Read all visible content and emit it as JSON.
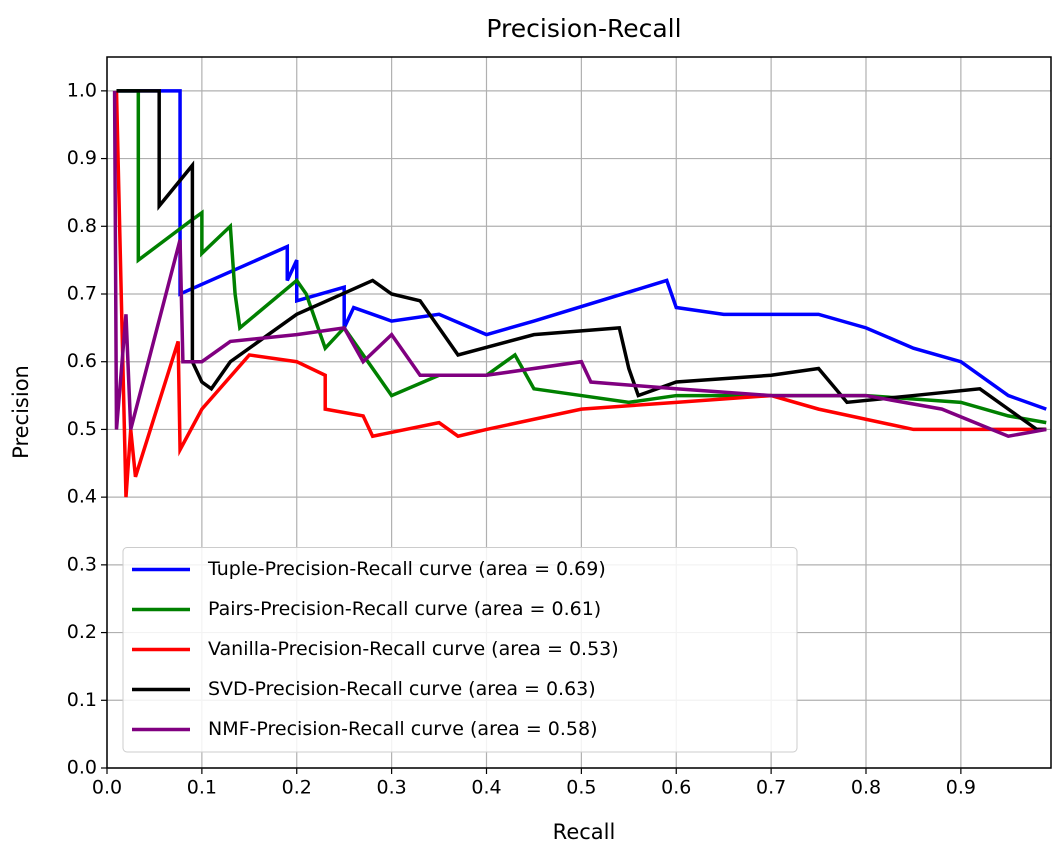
{
  "chart_data": {
    "type": "line",
    "title": "Precision-Recall",
    "x_label": "Recall",
    "y_label": "Precision",
    "xlim": [
      0,
      0.995
    ],
    "ylim": [
      0,
      1.05
    ],
    "xticks": [
      {
        "value": 0,
        "label": "0.0"
      },
      0.1,
      0.2,
      0.3,
      0.4,
      0.5,
      0.6,
      0.7,
      0.8,
      0.9
    ],
    "yticks": [
      {
        "value": 0,
        "label": "0.0"
      },
      0.1,
      0.2,
      0.3,
      0.4,
      0.5,
      0.6,
      0.7,
      0.8,
      0.9,
      {
        "value": 1,
        "label": "1.0"
      }
    ],
    "grid": true,
    "legend": "lower left",
    "series": [
      {
        "name": "Tuple-Precision-Recall curve (area = 0.69)",
        "color": "#0000ff",
        "x": [
          0.01,
          0.077,
          0.077,
          0.19,
          0.19,
          0.2,
          0.2,
          0.25,
          0.25,
          0.26,
          0.3,
          0.35,
          0.4,
          0.45,
          0.59,
          0.6,
          0.65,
          0.7,
          0.75,
          0.8,
          0.85,
          0.9,
          0.95,
          0.99
        ],
        "values": [
          1.0,
          1.0,
          0.7,
          0.77,
          0.72,
          0.75,
          0.69,
          0.71,
          0.65,
          0.68,
          0.66,
          0.67,
          0.64,
          0.66,
          0.72,
          0.68,
          0.67,
          0.67,
          0.67,
          0.65,
          0.62,
          0.6,
          0.55,
          0.53
        ]
      },
      {
        "name": "Pairs-Precision-Recall curve (area = 0.61)",
        "color": "#008000",
        "x": [
          0.01,
          0.033,
          0.033,
          0.09,
          0.1,
          0.1,
          0.13,
          0.135,
          0.14,
          0.2,
          0.21,
          0.23,
          0.25,
          0.3,
          0.35,
          0.4,
          0.43,
          0.45,
          0.5,
          0.55,
          0.6,
          0.7,
          0.8,
          0.9,
          0.95,
          0.99
        ],
        "values": [
          1.0,
          1.0,
          0.75,
          0.81,
          0.82,
          0.76,
          0.8,
          0.7,
          0.65,
          0.72,
          0.7,
          0.62,
          0.65,
          0.55,
          0.58,
          0.58,
          0.61,
          0.56,
          0.55,
          0.54,
          0.55,
          0.55,
          0.55,
          0.54,
          0.52,
          0.51
        ]
      },
      {
        "name": "Vanilla-Precision-Recall curve (area = 0.53)",
        "color": "#ff0000",
        "x": [
          0.01,
          0.02,
          0.025,
          0.03,
          0.075,
          0.077,
          0.1,
          0.15,
          0.2,
          0.23,
          0.23,
          0.27,
          0.28,
          0.35,
          0.37,
          0.4,
          0.5,
          0.6,
          0.7,
          0.75,
          0.85,
          0.9,
          0.99
        ],
        "values": [
          1.0,
          0.4,
          0.5,
          0.43,
          0.63,
          0.47,
          0.53,
          0.61,
          0.6,
          0.58,
          0.53,
          0.52,
          0.49,
          0.51,
          0.49,
          0.5,
          0.53,
          0.54,
          0.55,
          0.53,
          0.5,
          0.5,
          0.5
        ]
      },
      {
        "name": "SVD-Precision-Recall curve (area = 0.63)",
        "color": "#000000",
        "x": [
          0.01,
          0.055,
          0.055,
          0.09,
          0.09,
          0.1,
          0.11,
          0.13,
          0.2,
          0.28,
          0.3,
          0.33,
          0.37,
          0.45,
          0.54,
          0.55,
          0.56,
          0.6,
          0.7,
          0.75,
          0.78,
          0.85,
          0.92,
          0.95,
          0.98,
          0.99
        ],
        "values": [
          1.0,
          1.0,
          0.83,
          0.89,
          0.6,
          0.57,
          0.56,
          0.6,
          0.67,
          0.72,
          0.7,
          0.69,
          0.61,
          0.64,
          0.65,
          0.59,
          0.55,
          0.57,
          0.58,
          0.59,
          0.54,
          0.55,
          0.56,
          0.53,
          0.5,
          0.5
        ]
      },
      {
        "name": "NMF-Precision-Recall curve (area = 0.58)",
        "color": "#800080",
        "x": [
          0.008,
          0.01,
          0.02,
          0.025,
          0.077,
          0.08,
          0.1,
          0.13,
          0.2,
          0.25,
          0.27,
          0.3,
          0.33,
          0.4,
          0.5,
          0.51,
          0.6,
          0.7,
          0.8,
          0.88,
          0.95,
          0.99
        ],
        "values": [
          1.0,
          0.5,
          0.67,
          0.5,
          0.78,
          0.6,
          0.6,
          0.63,
          0.64,
          0.65,
          0.6,
          0.64,
          0.58,
          0.58,
          0.6,
          0.57,
          0.56,
          0.55,
          0.55,
          0.53,
          0.49,
          0.5
        ]
      }
    ]
  }
}
